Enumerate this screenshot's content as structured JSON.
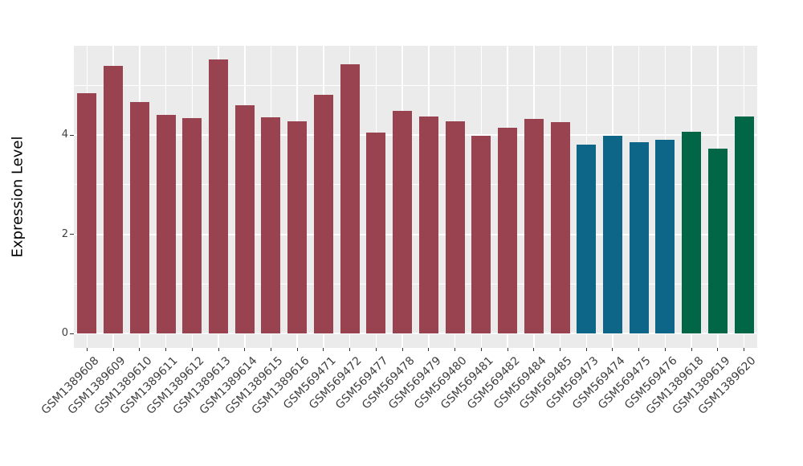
{
  "figure": {
    "background": "#FFFFFF",
    "panel_background": "#EBEBEB",
    "gridline_color": "#FFFFFF",
    "axis_text_color": "#404040",
    "axis_title_color": "#000000"
  },
  "chart_data": {
    "type": "bar",
    "title": "",
    "xlabel": "",
    "ylabel": "Expression Level",
    "legend": "none",
    "grid": true,
    "ylim": [
      0,
      5.8
    ],
    "y_ticks": [
      0,
      2,
      4
    ],
    "y_minor_gridlines": [
      1,
      3,
      5
    ],
    "categories": [
      "GSM1389608",
      "GSM1389609",
      "GSM1389610",
      "GSM1389611",
      "GSM1389612",
      "GSM1389613",
      "GSM1389614",
      "GSM1389615",
      "GSM1389616",
      "GSM569471",
      "GSM569472",
      "GSM569477",
      "GSM569478",
      "GSM569479",
      "GSM569480",
      "GSM569481",
      "GSM569482",
      "GSM569484",
      "GSM569485",
      "GSM569473",
      "GSM569474",
      "GSM569475",
      "GSM569476",
      "GSM1389618",
      "GSM1389619",
      "GSM1389620"
    ],
    "values": [
      4.84,
      5.39,
      4.66,
      4.41,
      4.35,
      5.53,
      4.6,
      4.36,
      4.28,
      4.82,
      5.42,
      4.05,
      4.48,
      4.38,
      4.28,
      3.98,
      4.15,
      4.33,
      4.26,
      3.8,
      3.98,
      3.86,
      3.91,
      4.07,
      3.72,
      4.37
    ],
    "bar_colors": [
      "#9A4350",
      "#9A4350",
      "#9A4350",
      "#9A4350",
      "#9A4350",
      "#9A4350",
      "#9A4350",
      "#9A4350",
      "#9A4350",
      "#9A4350",
      "#9A4350",
      "#9A4350",
      "#9A4350",
      "#9A4350",
      "#9A4350",
      "#9A4350",
      "#9A4350",
      "#9A4350",
      "#9A4350",
      "#0D6688",
      "#0D6688",
      "#0D6688",
      "#0D6688",
      "#006645",
      "#006645",
      "#006645"
    ],
    "palette": [
      "#9A4350",
      "#0D6688",
      "#006645"
    ]
  }
}
